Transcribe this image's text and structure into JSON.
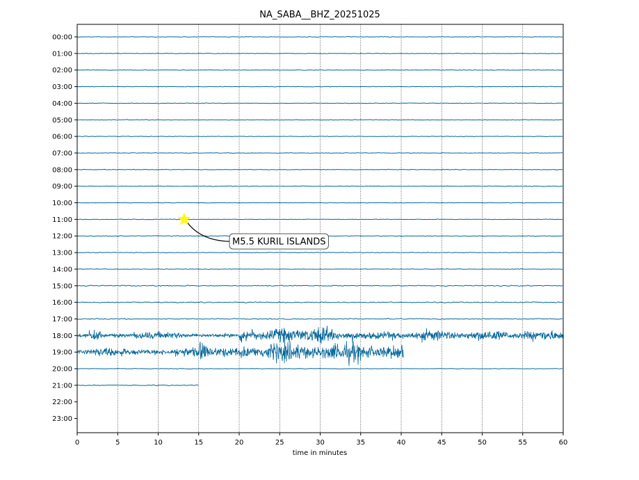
{
  "chart_data": {
    "type": "line",
    "title": "NA_SABA__BHZ_20251025",
    "xlabel": "time in minutes",
    "ylabel": "",
    "xlim": [
      0,
      60
    ],
    "x_ticks": [
      0,
      5,
      10,
      15,
      20,
      25,
      30,
      35,
      40,
      45,
      50,
      55,
      60
    ],
    "x_grid": "dotted",
    "y_tick_labels": [
      "00:00",
      "01:00",
      "02:00",
      "03:00",
      "04:00",
      "05:00",
      "06:00",
      "07:00",
      "08:00",
      "09:00",
      "10:00",
      "11:00",
      "12:00",
      "13:00",
      "14:00",
      "15:00",
      "16:00",
      "17:00",
      "18:00",
      "19:00",
      "20:00",
      "21:00",
      "22:00",
      "23:00"
    ],
    "trace_color": "#006699",
    "series": [
      {
        "hour": "00:00",
        "x_end": 60,
        "activity": "quiet"
      },
      {
        "hour": "01:00",
        "x_end": 60,
        "activity": "quiet"
      },
      {
        "hour": "02:00",
        "x_end": 60,
        "activity": "quiet"
      },
      {
        "hour": "03:00",
        "x_end": 60,
        "activity": "quiet"
      },
      {
        "hour": "04:00",
        "x_end": 60,
        "activity": "quiet"
      },
      {
        "hour": "05:00",
        "x_end": 60,
        "activity": "quiet"
      },
      {
        "hour": "06:00",
        "x_end": 60,
        "activity": "quiet"
      },
      {
        "hour": "07:00",
        "x_end": 60,
        "activity": "quiet"
      },
      {
        "hour": "08:00",
        "x_end": 60,
        "activity": "quiet"
      },
      {
        "hour": "09:00",
        "x_end": 60,
        "activity": "quiet"
      },
      {
        "hour": "10:00",
        "x_end": 60,
        "activity": "quiet"
      },
      {
        "hour": "11:00",
        "x_end": 60,
        "activity": "quiet"
      },
      {
        "hour": "12:00",
        "x_end": 60,
        "activity": "quiet"
      },
      {
        "hour": "13:00",
        "x_end": 60,
        "activity": "quiet"
      },
      {
        "hour": "14:00",
        "x_end": 60,
        "activity": "quiet"
      },
      {
        "hour": "15:00",
        "x_end": 60,
        "activity": "slight"
      },
      {
        "hour": "16:00",
        "x_end": 60,
        "activity": "slight"
      },
      {
        "hour": "17:00",
        "x_end": 60,
        "activity": "slight"
      },
      {
        "hour": "18:00",
        "x_end": 60,
        "activity": "noisy"
      },
      {
        "hour": "19:00",
        "x_end": 40.3,
        "activity": "noisy"
      },
      {
        "hour": "20:00",
        "x_end": 60,
        "activity": "quiet"
      },
      {
        "hour": "21:00",
        "x_end": 15,
        "activity": "slight"
      }
    ],
    "event": {
      "label": "M5.5 KURIL ISLANDS",
      "hour": "11:00",
      "x_minutes": 13.2,
      "marker": "star",
      "marker_color": "#ffff00"
    }
  }
}
